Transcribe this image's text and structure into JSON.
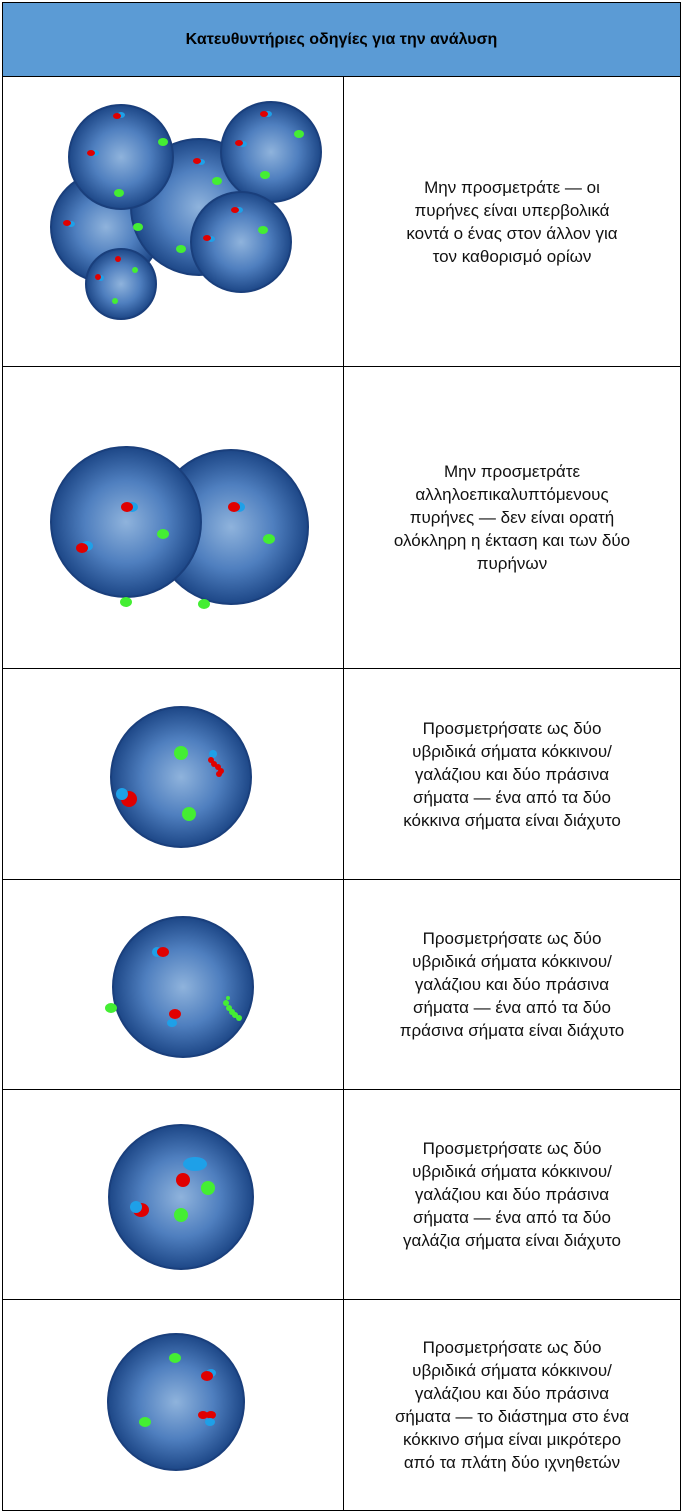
{
  "header": {
    "title": "Κατευθυντήριες οδηγίες για την ανάλυση"
  },
  "rows": [
    {
      "text": "Μην προσμετράτε — οι πυρήνες είναι υπερβολικά κοντά ο ένας στον άλλον για τον καθορισμό ορίων"
    },
    {
      "text": "Μην προσμετράτε αλληλοεπικαλυπτόμενους πυρήνες — δεν είναι ορατή ολόκληρη η έκταση και των δύο πυρήνων"
    },
    {
      "text": "Προσμετρήσατε ως δύο υβριδικά σήματα κόκκινου/γαλάζιου και δύο πράσινα σήματα — ένα από τα δύο κόκκινα σήματα είναι διάχυτο"
    },
    {
      "text": "Προσμετρήσατε ως δύο υβριδικά σήματα κόκκινου/γαλάζιου και δύο πράσινα σήματα — ένα από τα δύο πράσινα σήματα είναι διάχυτο"
    },
    {
      "text": "Προσμετρήσατε ως δύο υβριδικά σήματα κόκκινου/γαλάζιου και δύο πράσινα σήματα — ένα από τα δύο γαλάζια σήματα είναι διάχυτο"
    },
    {
      "text": "Προσμετρήσατε ως δύο υβριδικά σήματα κόκκινου/γαλάζιου και δύο πράσινα σήματα — το διάστημα στο ένα κόκκινο σήμα είναι μικρότερο από τα πλάτη δύο ιχνηθετών"
    }
  ]
}
